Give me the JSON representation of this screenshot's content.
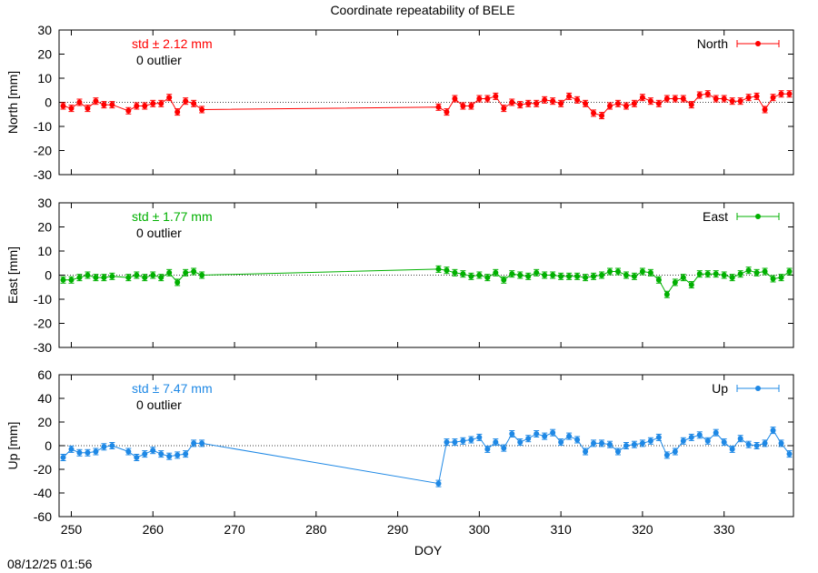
{
  "title": "Coordinate repeatability of BELE",
  "footer": "08/12/25 01:56",
  "chart_data": [
    {
      "type": "scatter",
      "panel": "North",
      "ylabel": "North [mm]",
      "ylim": [
        -30,
        30
      ],
      "yticks": [
        -30,
        -20,
        -10,
        0,
        10,
        20,
        30
      ],
      "color": "#ff0000",
      "std_label": "std ± 2.12 mm",
      "outlier_label": "0 outlier",
      "series": [
        {
          "name": "North",
          "x": [
            249,
            250,
            251,
            252,
            253,
            254,
            255,
            257,
            258,
            259,
            260,
            261,
            262,
            263,
            264,
            265,
            266,
            295,
            296,
            297,
            298,
            299,
            300,
            301,
            302,
            303,
            304,
            305,
            306,
            307,
            308,
            309,
            310,
            311,
            312,
            313,
            314,
            315,
            316,
            317,
            318,
            319,
            320,
            321,
            322,
            323,
            324,
            325,
            326,
            327,
            328,
            329,
            330,
            331,
            332,
            333,
            334,
            335,
            336,
            337,
            338
          ],
          "y": [
            -1.5,
            -2.5,
            0,
            -2.5,
            0.5,
            -1,
            -1,
            -3.5,
            -1.5,
            -1.5,
            -0.5,
            -0.5,
            2,
            -4,
            0.5,
            -0.5,
            -3,
            -2,
            -4,
            1.5,
            -1.5,
            -1.5,
            1.5,
            1.5,
            2.5,
            -2.5,
            0,
            -1,
            -0.5,
            -0.5,
            1,
            0.5,
            -0.5,
            2.5,
            1,
            -0.5,
            -4.5,
            -5.5,
            -1.5,
            -0.5,
            -1.5,
            -0.5,
            2,
            0.5,
            -0.5,
            1.5,
            1.5,
            1.5,
            -1,
            3,
            3.5,
            1.5,
            1.5,
            0.5,
            0.5,
            2,
            2.5,
            -3,
            2,
            3.5,
            3.5
          ]
        }
      ]
    },
    {
      "type": "scatter",
      "panel": "East",
      "ylabel": "East [mm]",
      "ylim": [
        -30,
        30
      ],
      "yticks": [
        -30,
        -20,
        -10,
        0,
        10,
        20,
        30
      ],
      "color": "#00b000",
      "std_label": "std ± 1.77 mm",
      "outlier_label": "0 outlier",
      "series": [
        {
          "name": "East",
          "x": [
            249,
            250,
            251,
            252,
            253,
            254,
            255,
            257,
            258,
            259,
            260,
            261,
            262,
            263,
            264,
            265,
            266,
            295,
            296,
            297,
            298,
            299,
            300,
            301,
            302,
            303,
            304,
            305,
            306,
            307,
            308,
            309,
            310,
            311,
            312,
            313,
            314,
            315,
            316,
            317,
            318,
            319,
            320,
            321,
            322,
            323,
            324,
            325,
            326,
            327,
            328,
            329,
            330,
            331,
            332,
            333,
            334,
            335,
            336,
            337,
            338
          ],
          "y": [
            -2,
            -2,
            -1,
            0,
            -1,
            -1,
            -0.5,
            -1,
            0,
            -1,
            0,
            -1,
            1,
            -3,
            1,
            1.5,
            0,
            2.5,
            2,
            1,
            0.5,
            -0.5,
            0,
            -1,
            1,
            -2,
            0.5,
            0,
            -0.5,
            1,
            0,
            0,
            -0.5,
            -0.5,
            -0.5,
            -1,
            -0.5,
            0,
            1.5,
            1.5,
            0,
            -0.5,
            1.5,
            1,
            -2,
            -8,
            -3,
            -1,
            -4,
            0.5,
            0.5,
            0.5,
            0,
            -1,
            0.5,
            2,
            1,
            1.5,
            -1.5,
            -1,
            1.5
          ]
        }
      ]
    },
    {
      "type": "scatter",
      "panel": "Up",
      "ylabel": "Up [mm]",
      "ylim": [
        -60,
        60
      ],
      "yticks": [
        -60,
        -40,
        -20,
        0,
        20,
        40,
        60
      ],
      "color": "#1e88e5",
      "std_label": "std ± 7.47 mm",
      "outlier_label": "0 outlier",
      "series": [
        {
          "name": "Up",
          "x": [
            249,
            250,
            251,
            252,
            253,
            254,
            255,
            257,
            258,
            259,
            260,
            261,
            262,
            263,
            264,
            265,
            266,
            295,
            296,
            297,
            298,
            299,
            300,
            301,
            302,
            303,
            304,
            305,
            306,
            307,
            308,
            309,
            310,
            311,
            312,
            313,
            314,
            315,
            316,
            317,
            318,
            319,
            320,
            321,
            322,
            323,
            324,
            325,
            326,
            327,
            328,
            329,
            330,
            331,
            332,
            333,
            334,
            335,
            336,
            337,
            338
          ],
          "y": [
            -10,
            -3,
            -6,
            -6,
            -5,
            -1,
            0,
            -5,
            -10,
            -7,
            -4,
            -7,
            -9,
            -8,
            -7,
            2,
            2,
            -32,
            3,
            3,
            4,
            5,
            7,
            -3,
            3,
            -2,
            10,
            3,
            6,
            10,
            8,
            11,
            3,
            8,
            5,
            -5,
            2,
            2,
            1,
            -5,
            0,
            1,
            2,
            4,
            7,
            -8,
            -5,
            4,
            7,
            9,
            4,
            11,
            3,
            -3,
            6,
            1,
            0,
            2,
            13,
            2,
            -7
          ]
        }
      ]
    }
  ],
  "xaxis": {
    "label": "DOY",
    "xlim": [
      248.5,
      338.5
    ],
    "ticks": [
      250,
      260,
      270,
      280,
      290,
      300,
      310,
      320,
      330
    ]
  }
}
